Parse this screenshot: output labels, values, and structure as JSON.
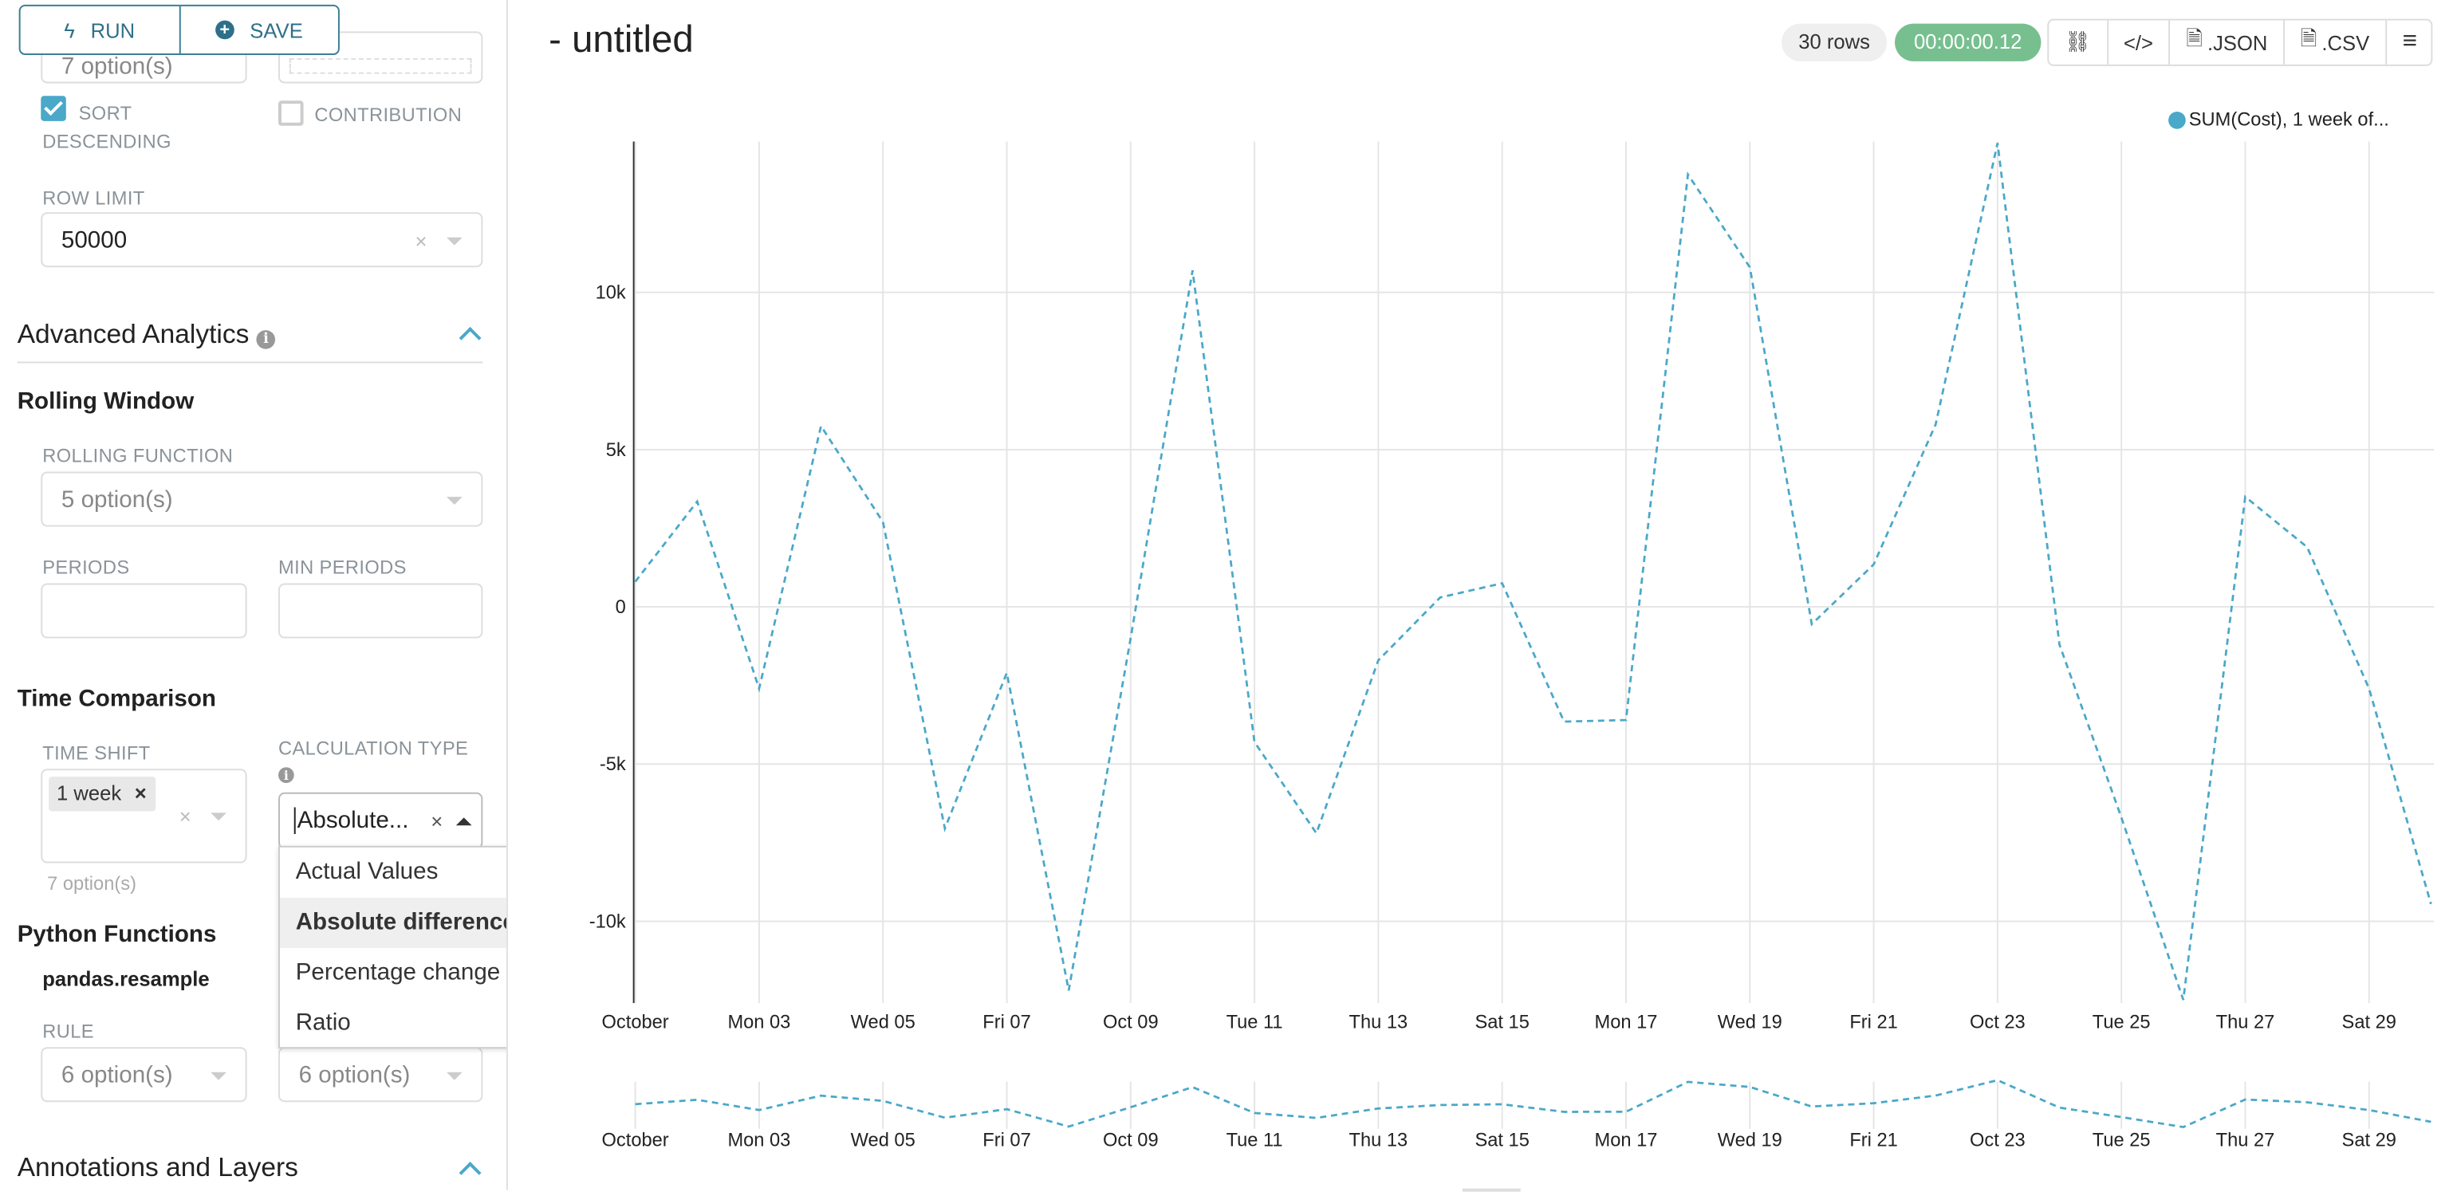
{
  "toolbar": {
    "run_label": "RUN",
    "save_label": "SAVE"
  },
  "sidebar": {
    "top_partial_value": "7 option(s)",
    "sort_descending": {
      "label": "SORT DESCENDING",
      "checked": true
    },
    "contribution": {
      "label": "CONTRIBUTION",
      "checked": false
    },
    "row_limit": {
      "label": "ROW LIMIT",
      "value": "50000"
    },
    "advanced_analytics": {
      "title": "Advanced Analytics"
    },
    "rolling_window": {
      "title": "Rolling Window",
      "function_label": "ROLLING FUNCTION",
      "function_placeholder": "5 option(s)",
      "periods_label": "PERIODS",
      "min_periods_label": "MIN PERIODS"
    },
    "time_comparison": {
      "title": "Time Comparison",
      "time_shift_label": "TIME SHIFT",
      "time_shift_tag": "1 week",
      "time_shift_hint": "7 option(s)",
      "calc_type_label": "CALCULATION TYPE",
      "calc_type_value": "Absolute...",
      "calc_options": [
        "Actual Values",
        "Absolute difference",
        "Percentage change",
        "Ratio"
      ],
      "calc_selected": "Absolute difference"
    },
    "python_functions": {
      "title": "Python Functions",
      "subtitle": "pandas.resample",
      "rule_label": "RULE",
      "rule_placeholder": "6 option(s)",
      "method_placeholder": "6 option(s)"
    },
    "annotations": {
      "title": "Annotations and Layers"
    }
  },
  "header": {
    "title": "- untitled",
    "rows": "30 rows",
    "timer": "00:00:00.12",
    "json_label": ".JSON",
    "csv_label": ".CSV"
  },
  "colors": {
    "accent": "#4aa8c8",
    "timer": "#77bf8f",
    "button": "#2e7089"
  },
  "chart_data": {
    "type": "line",
    "legend": {
      "label": "SUM(Cost), 1 week of...",
      "position": "top-right"
    },
    "x": [
      "2022-10-01",
      "2022-10-02",
      "2022-10-03",
      "2022-10-04",
      "2022-10-05",
      "2022-10-06",
      "2022-10-07",
      "2022-10-08",
      "2022-10-09",
      "2022-10-10",
      "2022-10-11",
      "2022-10-12",
      "2022-10-13",
      "2022-10-14",
      "2022-10-15",
      "2022-10-16",
      "2022-10-17",
      "2022-10-18",
      "2022-10-19",
      "2022-10-20",
      "2022-10-21",
      "2022-10-22",
      "2022-10-23",
      "2022-10-24",
      "2022-10-25",
      "2022-10-26",
      "2022-10-27",
      "2022-10-28",
      "2022-10-29",
      "2022-10-30"
    ],
    "series": [
      {
        "name": "SUM(Cost), 1 week of...",
        "values": [
          800,
          3350,
          -2600,
          5750,
          2700,
          -7050,
          -2100,
          -12200,
          -1000,
          10700,
          -4300,
          -7200,
          -1700,
          300,
          750,
          -3650,
          -3600,
          13750,
          10800,
          -550,
          1350,
          5800,
          14750,
          -1200,
          -6700,
          -12500,
          3500,
          1900,
          -2600,
          -9450
        ]
      }
    ],
    "x_tick_labels": [
      "October",
      "Mon 03",
      "Wed 05",
      "Fri 07",
      "Oct 09",
      "Tue 11",
      "Thu 13",
      "Sat 15",
      "Mon 17",
      "Wed 19",
      "Fri 21",
      "Oct 23",
      "Tue 25",
      "Thu 27",
      "Sat 29"
    ],
    "y_tick_labels": [
      "-10k",
      "-5k",
      "0",
      "5k",
      "10k"
    ],
    "y_ticks": [
      -10000,
      -5000,
      0,
      5000,
      10000
    ],
    "ylim": [
      -12600,
      14800
    ],
    "grid": true,
    "line_style": "dashed",
    "has_overview_brush": true
  }
}
